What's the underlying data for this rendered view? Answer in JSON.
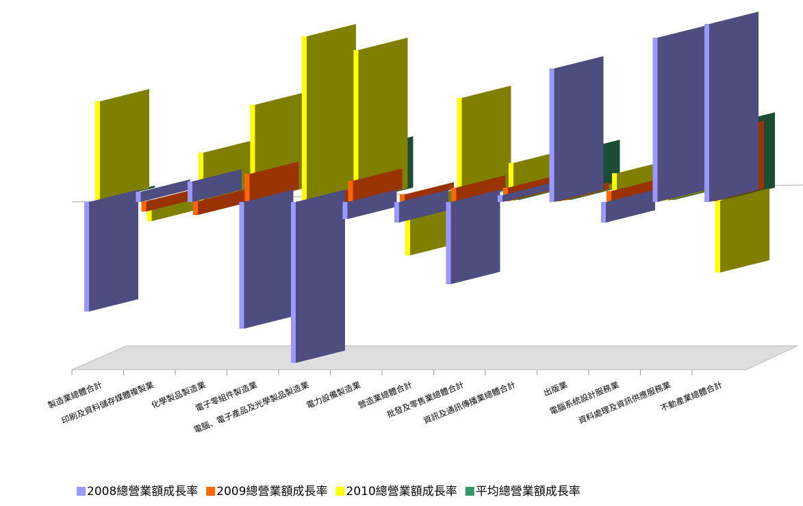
{
  "chart_data": {
    "type": "bar3d",
    "categories": [
      "製造業總體合計",
      "印刷及資料儲存媒體複製業",
      "化學製品製造業",
      "電子零組件製造業",
      "電腦、電子產品及光學製品製造業",
      "電力設備製造業",
      "營造業總體合計",
      "批發及零售業總體合計",
      "資訊及通訊傳播業總體合計",
      "出版業",
      "電腦系統設計服務業",
      "資料處理及資訊供應服務業",
      "不動產業總體合計"
    ],
    "series": [
      {
        "name": "2008總營業額成長率",
        "color": "#9999ff",
        "face": "#4d4d80",
        "values": [
          -16,
          1.5,
          3,
          -18.5,
          -23.5,
          -2.5,
          -3,
          -12,
          1,
          19.5,
          -3,
          24,
          26
        ]
      },
      {
        "name": "2009總營業額成長率",
        "color": "#ff6600",
        "face": "#993300",
        "values": [
          0,
          -1.5,
          -2,
          4,
          -3,
          3,
          1,
          2,
          2,
          1,
          1.5,
          0,
          10
        ]
      },
      {
        "name": "2010總營業額成長率",
        "color": "#ffff00",
        "face": "#808000",
        "values": [
          14.5,
          -3,
          7,
          14,
          24,
          22,
          -8,
          15,
          5.5,
          0.8,
          4,
          17,
          -10.5
        ]
      },
      {
        "name": "平均總營業額成長率",
        "color": "#339966",
        "face": "#1a4d33",
        "values": [
          0.3,
          -1,
          2.5,
          0,
          -0.5,
          7.5,
          -3,
          1.5,
          3,
          7,
          1,
          15,
          11
        ]
      }
    ],
    "ylim": [
      -25,
      29
    ]
  }
}
